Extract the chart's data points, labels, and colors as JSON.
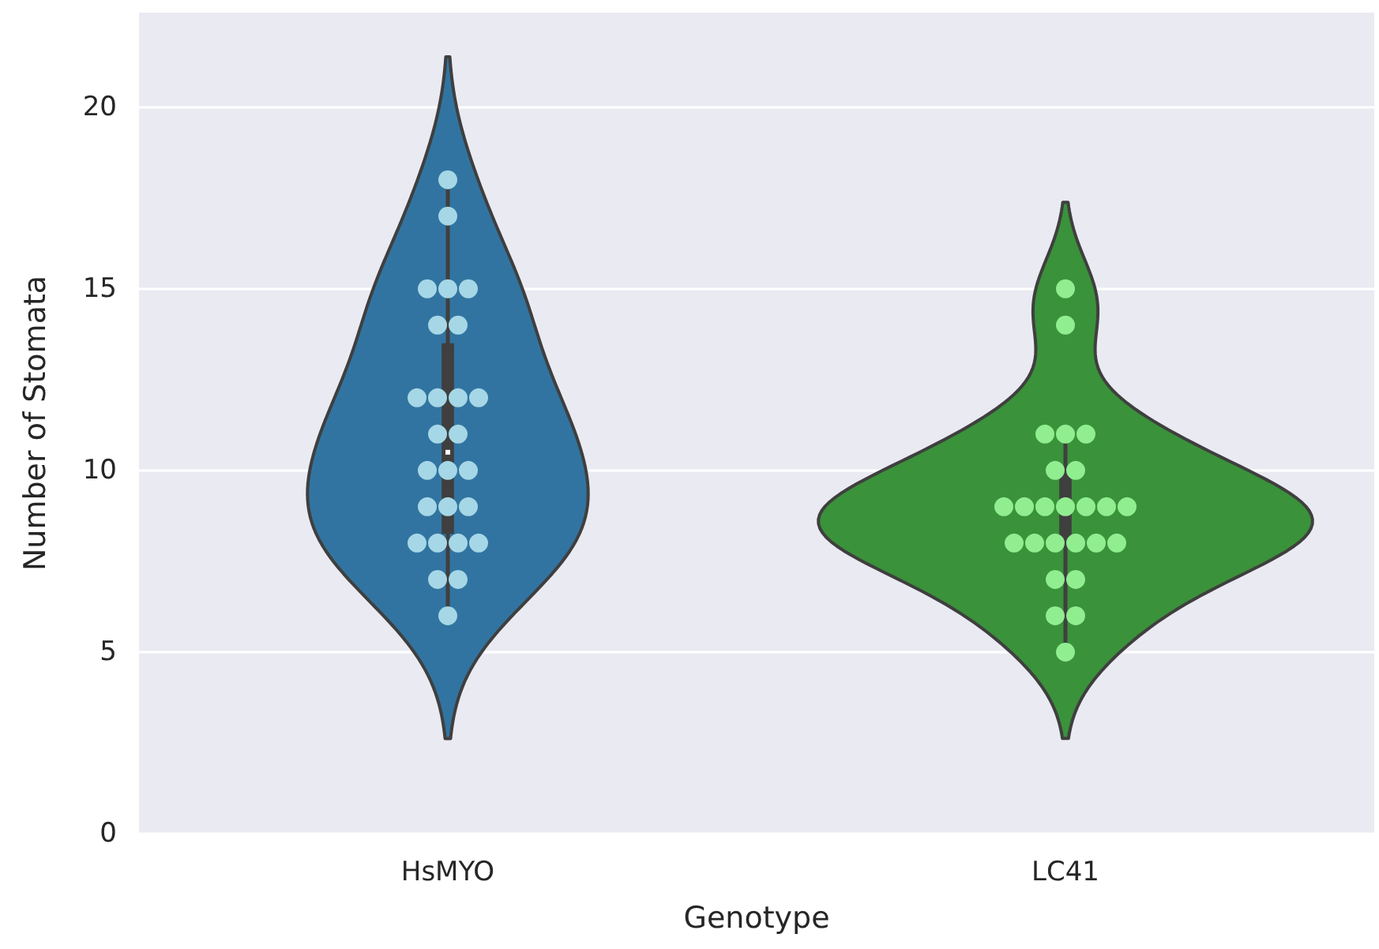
{
  "chart_data": {
    "type": "box",
    "xlabel": "Genotype",
    "ylabel": "Number of Stomata",
    "categories": [
      "HsMYO",
      "LC41"
    ],
    "colors": [
      "#3f3f3f",
      "#3f3f3f"
    ],
    "boxes": [
      {
        "low": 6,
        "q1": 8.25,
        "median": 10.5,
        "q3": 13.5,
        "high": 18
      },
      {
        "low": 5,
        "q1": 8,
        "median": 9,
        "q3": 10,
        "high": 11
      }
    ],
    "series": [
      {
        "type": "scatter",
        "color": "#a6d7e6",
        "x": [
          "HsMYO",
          "HsMYO",
          "HsMYO",
          "HsMYO",
          "HsMYO",
          "HsMYO",
          "HsMYO",
          "HsMYO",
          "HsMYO",
          "HsMYO",
          "HsMYO",
          "HsMYO",
          "HsMYO",
          "HsMYO",
          "HsMYO",
          "HsMYO",
          "HsMYO",
          "HsMYO",
          "HsMYO",
          "HsMYO",
          "HsMYO",
          "HsMYO",
          "HsMYO",
          "HsMYO",
          "HsMYO",
          "HsMYO"
        ],
        "values": [
          6,
          7,
          7,
          8,
          8,
          8,
          8,
          9,
          9,
          9,
          10,
          10,
          10,
          11,
          11,
          12,
          12,
          12,
          12,
          14,
          14,
          15,
          15,
          15,
          17,
          18
        ]
      },
      {
        "type": "scatter",
        "color": "#90ee90",
        "x": [
          "LC41",
          "LC41",
          "LC41",
          "LC41",
          "LC41",
          "LC41",
          "LC41",
          "LC41",
          "LC41",
          "LC41",
          "LC41",
          "LC41",
          "LC41",
          "LC41",
          "LC41",
          "LC41",
          "LC41",
          "LC41",
          "LC41",
          "LC41",
          "LC41",
          "LC41",
          "LC41",
          "LC41",
          "LC41"
        ],
        "values": [
          5,
          6,
          6,
          7,
          7,
          8,
          8,
          8,
          8,
          8,
          8,
          9,
          9,
          9,
          9,
          9,
          9,
          9,
          10,
          10,
          11,
          11,
          11,
          14,
          15
        ]
      }
    ],
    "ylim": [
      0,
      22.6
    ],
    "yticks": [
      0,
      5,
      10,
      15,
      20
    ],
    "grid": "y"
  }
}
